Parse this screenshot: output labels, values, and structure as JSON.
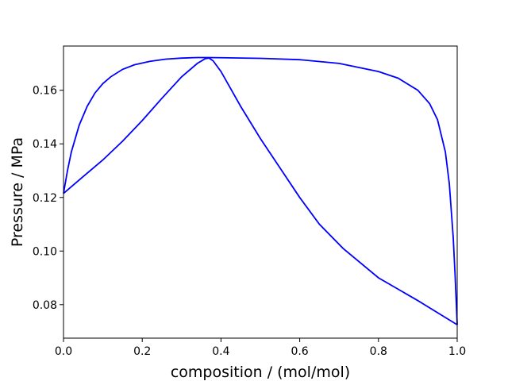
{
  "chart_data": {
    "type": "line",
    "title": "",
    "xlabel": "composition / (mol/mol)",
    "ylabel": "Pressure / MPa",
    "xlim": [
      0.0,
      1.0
    ],
    "ylim": [
      0.0675,
      0.1765
    ],
    "xticks": [
      0.0,
      0.2,
      0.4,
      0.6,
      0.8,
      1.0
    ],
    "xtick_labels": [
      "0.0",
      "0.2",
      "0.4",
      "0.6",
      "0.8",
      "1.0"
    ],
    "yticks": [
      0.08,
      0.1,
      0.12,
      0.14,
      0.16
    ],
    "ytick_labels": [
      "0.08",
      "0.10",
      "0.12",
      "0.14",
      "0.16"
    ],
    "grid": false,
    "legend": "none",
    "series": [
      {
        "color": "#0000ff",
        "x": [
          0.0,
          0.01,
          0.02,
          0.04,
          0.06,
          0.08,
          0.1,
          0.12,
          0.15,
          0.18,
          0.22,
          0.26,
          0.3,
          0.34,
          0.37,
          0.42,
          0.5,
          0.6,
          0.7,
          0.8,
          0.85,
          0.9,
          0.93,
          0.95,
          0.97,
          0.98,
          0.99,
          0.995,
          1.0
        ],
        "y": [
          0.1215,
          0.13,
          0.137,
          0.147,
          0.154,
          0.159,
          0.1625,
          0.165,
          0.1678,
          0.1695,
          0.1708,
          0.1716,
          0.172,
          0.1722,
          0.1722,
          0.1721,
          0.1719,
          0.1714,
          0.17,
          0.167,
          0.1645,
          0.16,
          0.155,
          0.149,
          0.137,
          0.125,
          0.105,
          0.09,
          0.0725
        ]
      },
      {
        "color": "#0000ff",
        "x": [
          0.0,
          0.05,
          0.1,
          0.15,
          0.2,
          0.25,
          0.3,
          0.34,
          0.36,
          0.37,
          0.38,
          0.4,
          0.45,
          0.5,
          0.55,
          0.6,
          0.65,
          0.71,
          0.8,
          0.9,
          1.0
        ],
        "y": [
          0.1215,
          0.1278,
          0.134,
          0.141,
          0.1487,
          0.157,
          0.165,
          0.17,
          0.1718,
          0.172,
          0.171,
          0.167,
          0.154,
          0.142,
          0.131,
          0.12,
          0.11,
          0.101,
          0.09,
          0.0815,
          0.0725
        ]
      }
    ]
  }
}
